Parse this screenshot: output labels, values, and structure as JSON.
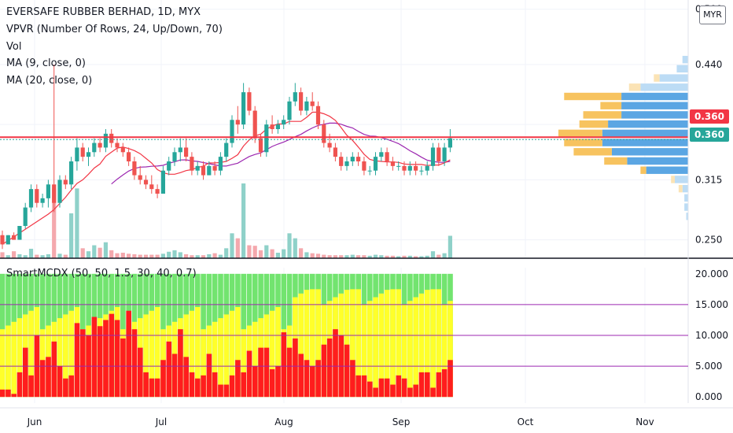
{
  "chart_data": [
    {
      "type": "candlestick",
      "title": "EVERSAFE RUBBER BERHAD, 1D, MYX",
      "currency": "MYR",
      "indicators": [
        "VPVR (Number Of Rows, 24, Up/Down, 70)",
        "Vol",
        "MA (9, close, 0)",
        "MA (20, close, 0)"
      ],
      "x_ticks": [
        "Jun",
        "Jul",
        "Aug",
        "Sep",
        "Oct",
        "Nov"
      ],
      "y_ticks": [
        "0.500",
        "0.440",
        "0.315",
        "0.250"
      ],
      "ylim": [
        0.23,
        0.51
      ],
      "last_price": "0.360",
      "last_price_label": "0.360",
      "candles": [
        [
          0.255,
          0.26,
          0.24,
          0.245
        ],
        [
          0.245,
          0.255,
          0.245,
          0.255
        ],
        [
          0.255,
          0.258,
          0.25,
          0.25
        ],
        [
          0.25,
          0.265,
          0.25,
          0.265
        ],
        [
          0.265,
          0.29,
          0.262,
          0.285
        ],
        [
          0.285,
          0.31,
          0.28,
          0.305
        ],
        [
          0.305,
          0.31,
          0.285,
          0.29
        ],
        [
          0.29,
          0.3,
          0.285,
          0.295
        ],
        [
          0.295,
          0.315,
          0.285,
          0.31
        ],
        [
          0.31,
          0.44,
          0.28,
          0.29
        ],
        [
          0.29,
          0.32,
          0.285,
          0.315
        ],
        [
          0.315,
          0.32,
          0.305,
          0.31
        ],
        [
          0.31,
          0.34,
          0.305,
          0.335
        ],
        [
          0.335,
          0.36,
          0.325,
          0.35
        ],
        [
          0.35,
          0.355,
          0.335,
          0.34
        ],
        [
          0.34,
          0.35,
          0.33,
          0.345
        ],
        [
          0.345,
          0.36,
          0.34,
          0.355
        ],
        [
          0.355,
          0.36,
          0.345,
          0.35
        ],
        [
          0.35,
          0.37,
          0.345,
          0.365
        ],
        [
          0.365,
          0.37,
          0.35,
          0.355
        ],
        [
          0.355,
          0.36,
          0.345,
          0.35
        ],
        [
          0.35,
          0.355,
          0.34,
          0.345
        ],
        [
          0.345,
          0.35,
          0.33,
          0.335
        ],
        [
          0.335,
          0.34,
          0.315,
          0.32
        ],
        [
          0.32,
          0.33,
          0.31,
          0.315
        ],
        [
          0.315,
          0.32,
          0.305,
          0.31
        ],
        [
          0.31,
          0.32,
          0.3,
          0.305
        ],
        [
          0.305,
          0.31,
          0.295,
          0.3
        ],
        [
          0.3,
          0.33,
          0.3,
          0.325
        ],
        [
          0.325,
          0.34,
          0.32,
          0.335
        ],
        [
          0.335,
          0.35,
          0.33,
          0.345
        ],
        [
          0.345,
          0.36,
          0.335,
          0.35
        ],
        [
          0.35,
          0.36,
          0.335,
          0.34
        ],
        [
          0.34,
          0.345,
          0.32,
          0.325
        ],
        [
          0.325,
          0.335,
          0.32,
          0.33
        ],
        [
          0.33,
          0.335,
          0.315,
          0.32
        ],
        [
          0.32,
          0.335,
          0.32,
          0.33
        ],
        [
          0.33,
          0.335,
          0.32,
          0.325
        ],
        [
          0.325,
          0.345,
          0.32,
          0.34
        ],
        [
          0.34,
          0.36,
          0.335,
          0.355
        ],
        [
          0.355,
          0.385,
          0.35,
          0.38
        ],
        [
          0.38,
          0.395,
          0.365,
          0.375
        ],
        [
          0.375,
          0.42,
          0.37,
          0.41
        ],
        [
          0.41,
          0.415,
          0.385,
          0.39
        ],
        [
          0.39,
          0.395,
          0.355,
          0.36
        ],
        [
          0.36,
          0.365,
          0.34,
          0.345
        ],
        [
          0.345,
          0.38,
          0.34,
          0.375
        ],
        [
          0.375,
          0.385,
          0.365,
          0.37
        ],
        [
          0.37,
          0.38,
          0.365,
          0.375
        ],
        [
          0.375,
          0.385,
          0.37,
          0.38
        ],
        [
          0.38,
          0.405,
          0.375,
          0.4
        ],
        [
          0.4,
          0.42,
          0.395,
          0.41
        ],
        [
          0.41,
          0.415,
          0.385,
          0.39
        ],
        [
          0.39,
          0.405,
          0.385,
          0.4
        ],
        [
          0.4,
          0.41,
          0.39,
          0.395
        ],
        [
          0.395,
          0.4,
          0.37,
          0.375
        ],
        [
          0.375,
          0.38,
          0.35,
          0.355
        ],
        [
          0.355,
          0.365,
          0.345,
          0.35
        ],
        [
          0.35,
          0.355,
          0.335,
          0.34
        ],
        [
          0.34,
          0.345,
          0.325,
          0.33
        ],
        [
          0.33,
          0.34,
          0.325,
          0.335
        ],
        [
          0.335,
          0.345,
          0.33,
          0.34
        ],
        [
          0.34,
          0.345,
          0.33,
          0.335
        ],
        [
          0.335,
          0.34,
          0.32,
          0.325
        ],
        [
          0.325,
          0.33,
          0.32,
          0.325
        ],
        [
          0.325,
          0.345,
          0.32,
          0.34
        ],
        [
          0.34,
          0.35,
          0.335,
          0.345
        ],
        [
          0.345,
          0.35,
          0.33,
          0.335
        ],
        [
          0.335,
          0.34,
          0.325,
          0.33
        ],
        [
          0.33,
          0.335,
          0.325,
          0.33
        ],
        [
          0.33,
          0.335,
          0.32,
          0.325
        ],
        [
          0.325,
          0.335,
          0.32,
          0.33
        ],
        [
          0.33,
          0.335,
          0.32,
          0.325
        ],
        [
          0.325,
          0.33,
          0.32,
          0.325
        ],
        [
          0.325,
          0.335,
          0.32,
          0.33
        ],
        [
          0.33,
          0.355,
          0.325,
          0.35
        ],
        [
          0.35,
          0.355,
          0.33,
          0.335
        ],
        [
          0.335,
          0.355,
          0.33,
          0.35
        ],
        [
          0.35,
          0.37,
          0.345,
          0.36
        ]
      ],
      "volume": [
        1.2,
        0.6,
        1.4,
        0.8,
        0.6,
        1.9,
        0.7,
        0.6,
        0.8,
        14,
        0.9,
        0.7,
        9,
        14,
        2,
        1.4,
        2.6,
        2.1,
        3.2,
        1.6,
        1.0,
        1.1,
        0.9,
        0.8,
        0.7,
        0.7,
        0.7,
        0.7,
        0.9,
        1.3,
        1.6,
        1.2,
        0.8,
        0.6,
        0.6,
        0.6,
        0.8,
        1.0,
        0.7,
        2.0,
        5,
        4,
        15,
        2.6,
        2.5,
        1.6,
        2.6,
        1.8,
        1.1,
        1.8,
        5,
        4,
        2.0,
        1.2,
        1.0,
        0.9,
        0.7,
        0.6,
        0.6,
        0.6,
        0.6,
        0.7,
        0.6,
        0.6,
        0.5,
        0.7,
        0.6,
        0.5,
        0.5,
        0.4,
        0.5,
        0.5,
        0.4,
        0.4,
        0.5,
        1.4,
        0.7,
        1.0,
        4.5
      ],
      "vpvr_rows": [
        {
          "price": 0.445,
          "up": 0.3,
          "down": 0.0
        },
        {
          "price": 0.435,
          "up": 0.6,
          "down": 0.0
        },
        {
          "price": 0.425,
          "up": 1.5,
          "down": 0.3
        },
        {
          "price": 0.415,
          "up": 2.5,
          "down": 0.6
        },
        {
          "price": 0.405,
          "up": 3.5,
          "down": 3.0
        },
        {
          "price": 0.395,
          "up": 3.5,
          "down": 1.1
        },
        {
          "price": 0.385,
          "up": 3.5,
          "down": 2.0
        },
        {
          "price": 0.375,
          "up": 4.2,
          "down": 1.5
        },
        {
          "price": 0.365,
          "up": 4.5,
          "down": 2.3
        },
        {
          "price": 0.355,
          "up": 4.5,
          "down": 2.0
        },
        {
          "price": 0.345,
          "up": 4.0,
          "down": 2.0
        },
        {
          "price": 0.335,
          "up": 3.2,
          "down": 1.2
        },
        {
          "price": 0.325,
          "up": 2.2,
          "down": 0.3
        },
        {
          "price": 0.315,
          "up": 0.7,
          "down": 0.2
        },
        {
          "price": 0.305,
          "up": 0.3,
          "down": 0.2
        },
        {
          "price": 0.295,
          "up": 0.2,
          "down": 0.0
        },
        {
          "price": 0.285,
          "up": 0.2,
          "down": 0.0
        },
        {
          "price": 0.275,
          "up": 0.1,
          "down": 0.0
        }
      ]
    },
    {
      "type": "bar",
      "title": "SmartMCDX (50, 50, 1.5, 30, 40, 0.7)",
      "y_ticks": [
        "20.000",
        "15.000",
        "10.000",
        "5.000",
        "0.000"
      ],
      "ylim": [
        -1,
        21
      ],
      "levels": [
        15,
        10,
        5
      ],
      "banker": [
        1.2,
        1.2,
        0.5,
        4.0,
        8.0,
        3.5,
        10.0,
        6.0,
        6.5,
        9.0,
        5.0,
        3.0,
        3.5,
        12.0,
        11.0,
        10.0,
        13.0,
        11.5,
        12.5,
        13.5,
        12.5,
        9.5,
        14.0,
        11.0,
        8.0,
        4.0,
        3.0,
        3.0,
        6.0,
        9.0,
        7.0,
        11.0,
        6.5,
        4.0,
        3.0,
        3.5,
        7.0,
        4.0,
        2.0,
        2.0,
        3.5,
        6.0,
        4.0,
        7.5,
        5.0,
        8.0,
        8.0,
        4.5,
        5.0,
        10.5,
        8.0,
        9.5,
        7.0,
        6.0,
        5.0,
        6.0,
        8.5,
        9.5,
        11.0,
        10.0,
        8.5,
        6.0,
        3.5,
        3.5,
        2.5,
        1.5,
        3.0,
        3.0,
        2.0,
        3.5,
        3.0,
        1.5,
        2.0,
        4.0,
        4.0,
        1.5,
        4.0,
        4.5,
        6.0
      ]
    }
  ]
}
